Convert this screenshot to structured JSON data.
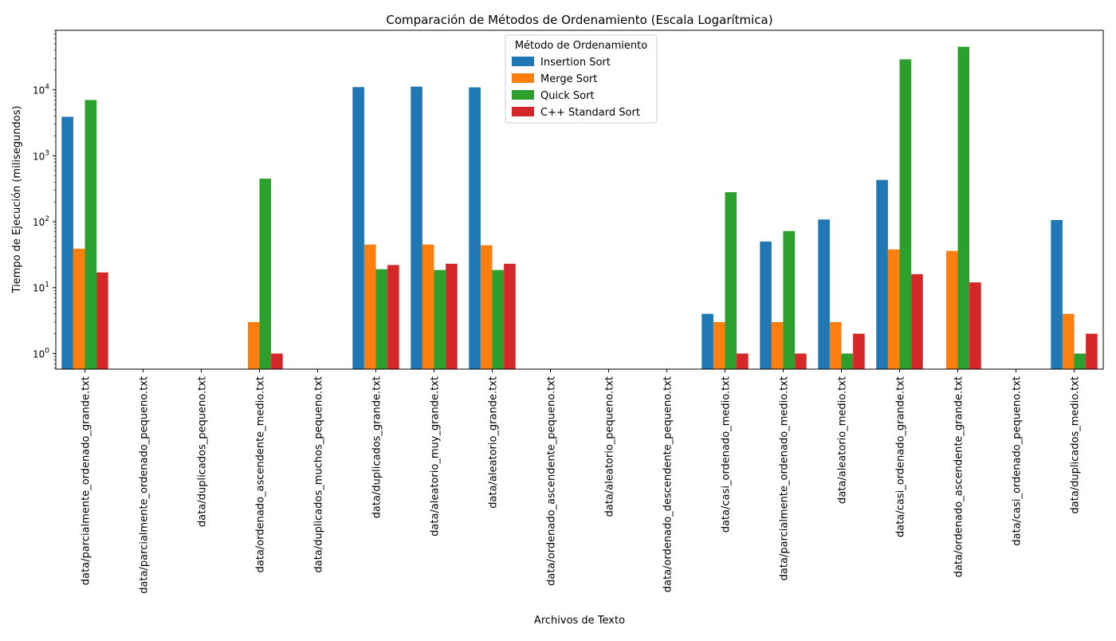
{
  "chart_data": {
    "type": "bar",
    "title": "Comparación de Métodos de Ordenamiento (Escala Logarítmica)",
    "xlabel": "Archivos de Texto",
    "ylabel": "Tiempo de Ejecución (milisegundos)",
    "yscale": "log",
    "ylim": [
      0.58,
      80000
    ],
    "y_ticks": [
      1,
      10,
      100,
      1000,
      10000
    ],
    "y_tick_labels": [
      "10^0",
      "10^1",
      "10^2",
      "10^3",
      "10^4"
    ],
    "grid": false,
    "legend": {
      "title": "Método de Ordenamiento",
      "placement": "top-center"
    },
    "categories": [
      "data/parcialmente_ordenado_grande.txt",
      "data/parcialmente_ordenado_pequeno.txt",
      "data/duplicados_pequeno.txt",
      "data/ordenado_ascendente_medio.txt",
      "data/duplicados_muchos_pequeno.txt",
      "data/duplicados_grande.txt",
      "data/aleatorio_muy_grande.txt",
      "data/aleatorio_grande.txt",
      "data/ordenado_ascendente_pequeno.txt",
      "data/aleatorio_pequeno.txt",
      "data/ordenado_descendente_pequeno.txt",
      "data/casi_ordenado_medio.txt",
      "data/parcialmente_ordenado_medio.txt",
      "data/aleatorio_medio.txt",
      "data/casi_ordenado_grande.txt",
      "data/ordenado_ascendente_grande.txt",
      "data/casi_ordenado_pequeno.txt",
      "data/duplicados_medio.txt"
    ],
    "series": [
      {
        "name": "Insertion Sort",
        "color": "#1f77b4",
        "values": [
          3900,
          null,
          null,
          null,
          null,
          11000,
          11200,
          10900,
          null,
          null,
          null,
          4,
          50,
          108,
          430,
          null,
          null,
          106
        ]
      },
      {
        "name": "Merge Sort",
        "color": "#ff7f0e",
        "values": [
          39,
          null,
          null,
          3,
          null,
          45,
          45,
          44,
          null,
          null,
          null,
          3,
          3,
          3,
          38,
          36,
          null,
          4
        ]
      },
      {
        "name": "Quick Sort",
        "color": "#2ca02c",
        "values": [
          7000,
          null,
          null,
          450,
          null,
          19,
          18.5,
          18.5,
          null,
          null,
          null,
          280,
          72,
          1,
          29000,
          45000,
          null,
          1
        ]
      },
      {
        "name": "C++ Standard Sort",
        "color": "#d62728",
        "values": [
          17,
          null,
          null,
          1,
          null,
          22,
          23,
          23,
          null,
          null,
          null,
          1,
          1,
          2,
          16,
          12,
          null,
          2
        ]
      }
    ]
  }
}
